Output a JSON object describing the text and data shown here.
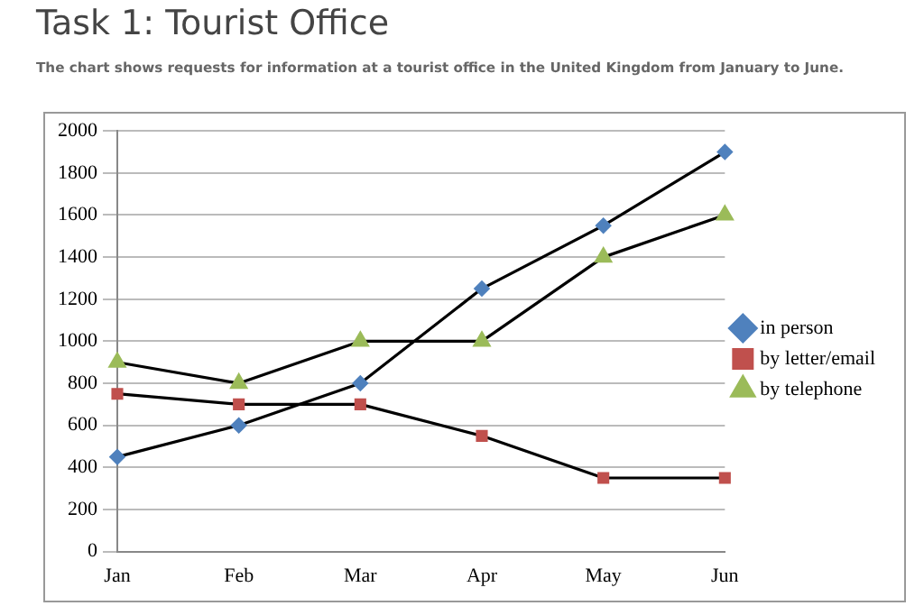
{
  "chart_data": {
    "type": "line",
    "title": "Task 1: Tourist Office",
    "subtitle": "The chart shows requests for information at a tourist office in the United Kingdom from January to June.",
    "categories": [
      "Jan",
      "Feb",
      "Mar",
      "Apr",
      "May",
      "Jun"
    ],
    "series": [
      {
        "name": "in person",
        "color": "#4f81bd",
        "marker": "diamond",
        "values": [
          450,
          600,
          800,
          1250,
          1550,
          1900
        ]
      },
      {
        "name": "by letter/email",
        "color": "#c0504d",
        "marker": "square",
        "values": [
          750,
          700,
          700,
          550,
          350,
          350
        ]
      },
      {
        "name": "by telephone",
        "color": "#9bbb59",
        "marker": "triangle",
        "values": [
          900,
          800,
          1000,
          1000,
          1400,
          1600
        ]
      }
    ],
    "ylim": [
      0,
      2000
    ],
    "yticks": [
      0,
      200,
      400,
      600,
      800,
      1000,
      1200,
      1400,
      1600,
      1800,
      2000
    ],
    "grid": "y",
    "legend": "right",
    "line_style": "solid"
  }
}
